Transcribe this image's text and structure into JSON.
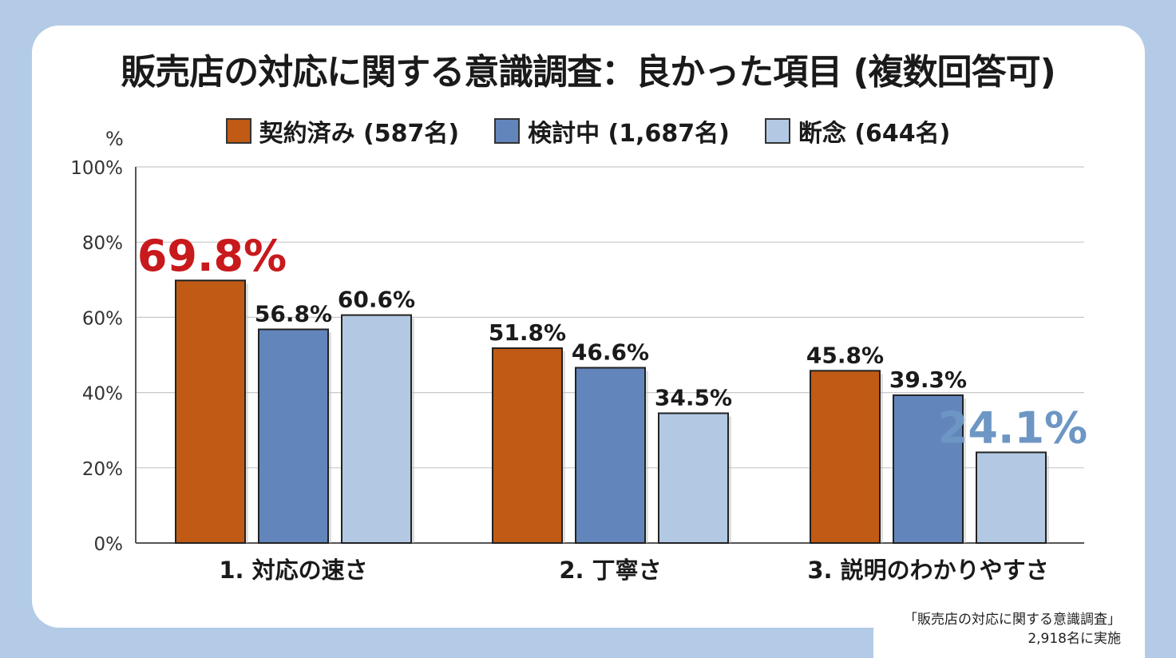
{
  "title": "販売店の対応に関する意識調査：良かった項目 (複数回答可)",
  "unit_label": "%",
  "source": {
    "line1": "「販売店の対応に関する意識調査」",
    "line2": "2,918名に実施"
  },
  "colors": {
    "series1": "#c05a14",
    "series2": "#6286bc",
    "series3": "#b3c9e3",
    "highlight_red": "#c8191c",
    "highlight_blue": "#6d96c4",
    "grid": "#c8c8c8"
  },
  "chart_data": {
    "type": "bar",
    "title": "販売店の対応に関する意識調査：良かった項目 (複数回答可)",
    "ylabel": "%",
    "ylim": [
      0,
      100
    ],
    "yticks": [
      0,
      20,
      40,
      60,
      80,
      100
    ],
    "ytick_labels": [
      "0%",
      "20%",
      "40%",
      "60%",
      "80%",
      "100%"
    ],
    "grid": true,
    "legend_position": "top",
    "categories": [
      "1. 対応の速さ",
      "2. 丁寧さ",
      "3. 説明のわかりやすさ"
    ],
    "series": [
      {
        "name": "契約済み (587名)",
        "values": [
          69.8,
          51.8,
          45.8
        ],
        "labels": [
          "69.8%",
          "51.8%",
          "45.8%"
        ]
      },
      {
        "name": "検討中 (1,687名)",
        "values": [
          56.8,
          46.6,
          39.3
        ],
        "labels": [
          "56.8%",
          "46.6%",
          "39.3%"
        ]
      },
      {
        "name": "断念 (644名)",
        "values": [
          60.6,
          34.5,
          24.1
        ],
        "labels": [
          "60.6%",
          "34.5%",
          "24.1%"
        ]
      }
    ],
    "highlights": [
      {
        "series": 0,
        "category": 0,
        "color": "#c8191c"
      },
      {
        "series": 2,
        "category": 2,
        "color": "#6d96c4"
      }
    ]
  }
}
